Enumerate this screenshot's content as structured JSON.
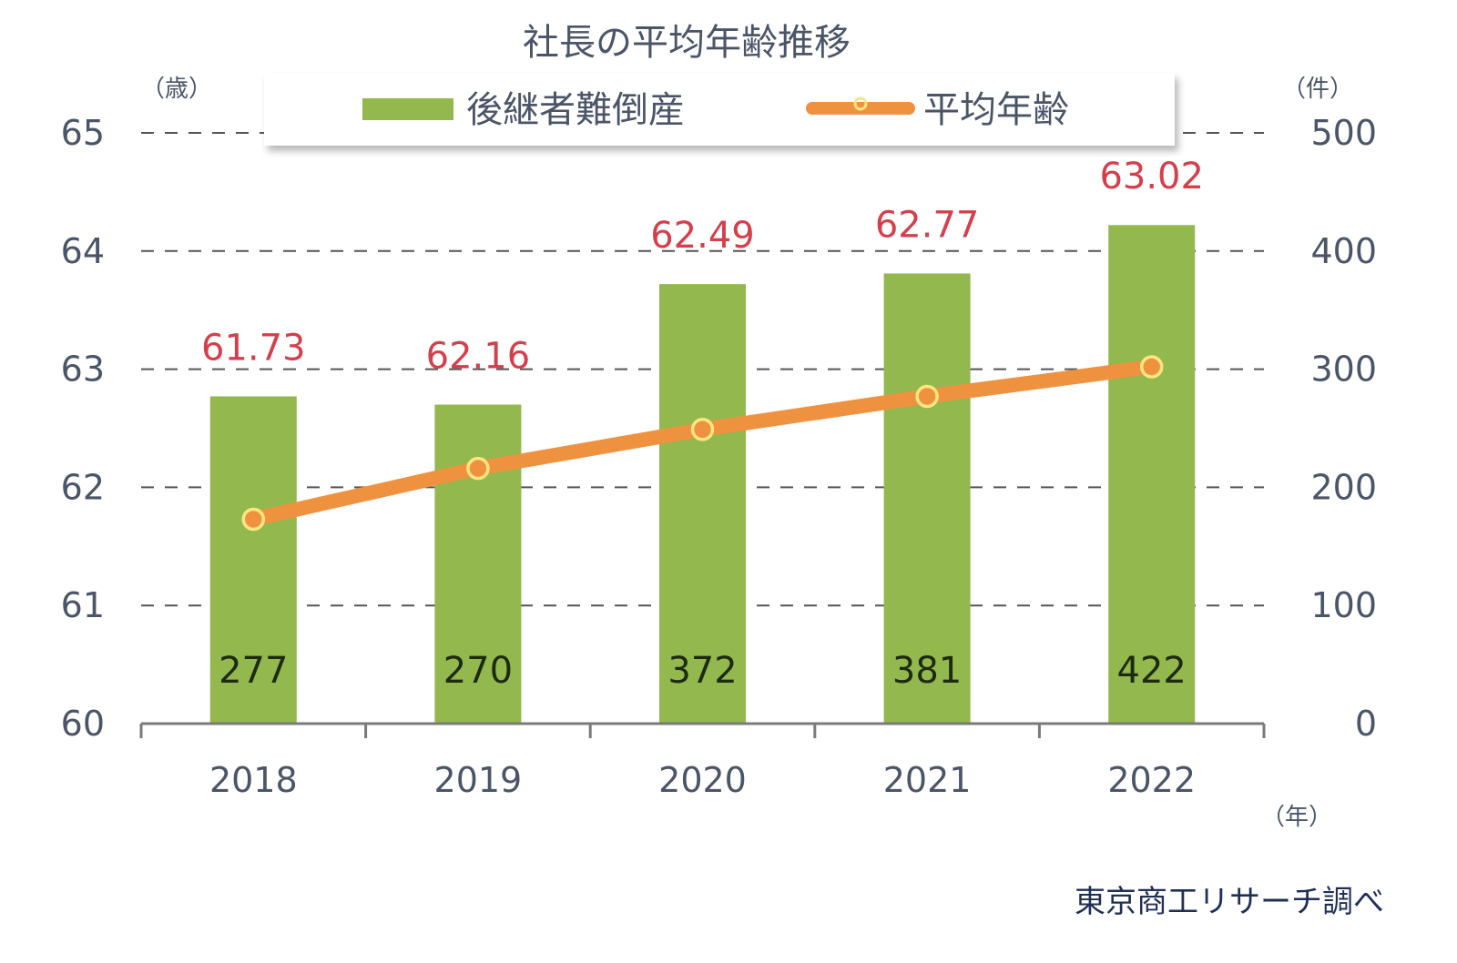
{
  "chart_data": {
    "type": "bar",
    "title": "社長の平均年齢推移",
    "categories": [
      "2018",
      "2019",
      "2020",
      "2021",
      "2022"
    ],
    "series": [
      {
        "name": "後継者難倒産",
        "type": "bar",
        "axis": "right",
        "values": [
          277,
          270,
          372,
          381,
          422
        ],
        "color": "#92b84e"
      },
      {
        "name": "平均年齢",
        "type": "line",
        "axis": "left",
        "values": [
          61.73,
          62.16,
          62.49,
          62.77,
          63.02
        ],
        "color": "#ef9240"
      }
    ],
    "left_axis": {
      "unit": "（歳）",
      "min": 60,
      "max": 65,
      "ticks": [
        60,
        61,
        62,
        63,
        64,
        65
      ]
    },
    "right_axis": {
      "unit": "（件）",
      "min": 0,
      "max": 500,
      "ticks": [
        0,
        100,
        200,
        300,
        400,
        500
      ]
    },
    "x_unit": "（年）",
    "grid": "dashed",
    "legend": "top-center"
  },
  "source": "東京商工リサーチ調べ",
  "colors": {
    "age_label": "#d43f4b",
    "axis_text": "#4a5568",
    "grid": "#555555"
  }
}
